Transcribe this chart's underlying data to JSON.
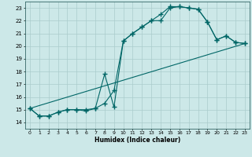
{
  "xlabel": "Humidex (Indice chaleur)",
  "xlim": [
    -0.5,
    23.5
  ],
  "ylim": [
    13.5,
    23.5
  ],
  "yticks": [
    14,
    15,
    16,
    17,
    18,
    19,
    20,
    21,
    22,
    23
  ],
  "xticks": [
    0,
    1,
    2,
    3,
    4,
    5,
    6,
    7,
    8,
    9,
    10,
    11,
    12,
    13,
    14,
    15,
    16,
    17,
    18,
    19,
    20,
    21,
    22,
    23
  ],
  "background_color": "#cce8e8",
  "grid_color": "#aacccc",
  "line_color": "#006666",
  "line_width": 0.8,
  "marker": "+",
  "marker_size": 4,
  "line1_x": [
    0,
    1,
    2,
    3,
    4,
    5,
    6,
    7,
    8,
    9,
    10,
    11,
    12,
    13,
    14,
    15,
    16,
    17,
    18,
    19,
    20,
    21,
    22,
    23
  ],
  "line1_y": [
    15.1,
    14.5,
    14.5,
    14.8,
    15.0,
    15.0,
    15.0,
    15.1,
    15.5,
    16.5,
    20.4,
    21.0,
    21.5,
    22.0,
    22.0,
    23.0,
    23.1,
    23.0,
    22.9,
    21.9,
    20.5,
    20.8,
    20.3,
    20.2
  ],
  "line2_x": [
    0,
    1,
    2,
    3,
    4,
    5,
    6,
    7,
    8,
    9,
    10,
    11,
    12,
    13,
    14,
    15,
    16,
    17,
    18,
    19,
    20,
    21,
    22,
    23
  ],
  "line2_y": [
    15.1,
    14.5,
    14.5,
    14.8,
    15.0,
    15.0,
    14.9,
    15.1,
    17.8,
    15.2,
    20.4,
    21.0,
    21.5,
    22.0,
    22.5,
    23.1,
    23.1,
    23.0,
    22.9,
    21.9,
    20.5,
    20.8,
    20.3,
    20.2
  ],
  "line3_x": [
    0,
    23
  ],
  "line3_y": [
    15.1,
    20.2
  ]
}
